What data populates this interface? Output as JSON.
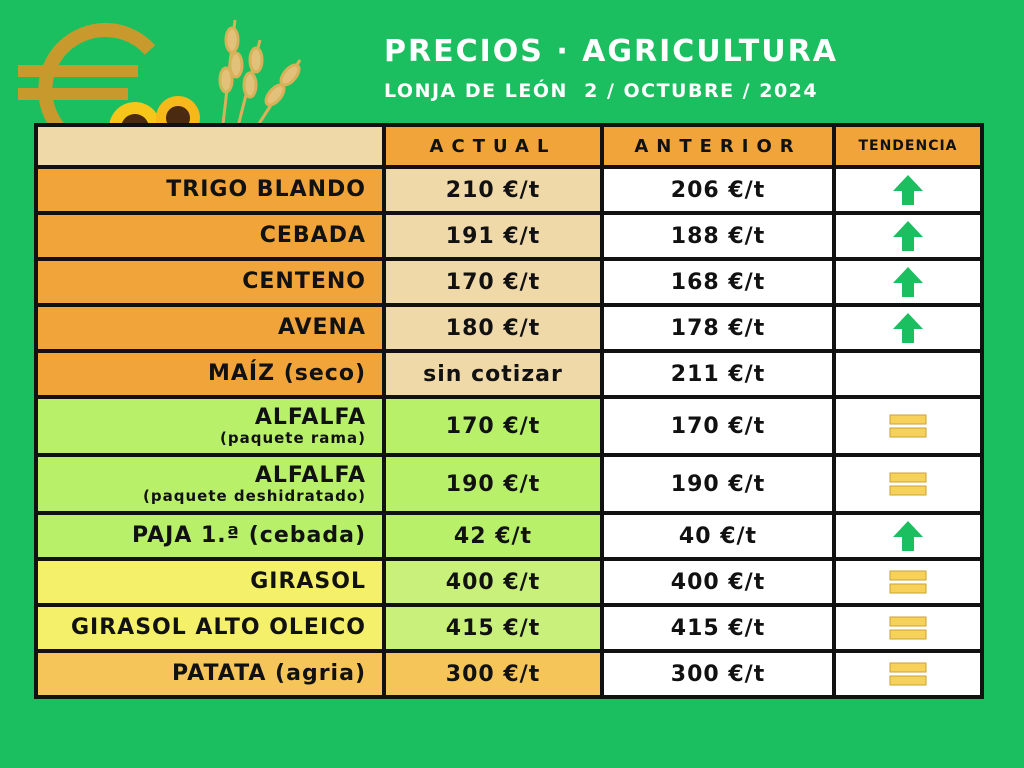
{
  "header": {
    "title": "PRECIOS · AGRICULTURA",
    "subtitle": "LONJA DE LEÓN  2 / OCTUBRE / 2024"
  },
  "columns": {
    "actual": "ACTUAL",
    "anterior": "ANTERIOR",
    "tendencia": "TENDENCIA"
  },
  "rows": [
    {
      "name": "TRIGO BLANDO",
      "sub": "",
      "actual": "210 €/t",
      "anterior": "206 €/t",
      "trend": "up-arrow-icon"
    },
    {
      "name": "CEBADA",
      "sub": "",
      "actual": "191 €/t",
      "anterior": "188 €/t",
      "trend": "up-arrow-icon"
    },
    {
      "name": "CENTENO",
      "sub": "",
      "actual": "170 €/t",
      "anterior": "168 €/t",
      "trend": "up-arrow-icon"
    },
    {
      "name": "AVENA",
      "sub": "",
      "actual": "180 €/t",
      "anterior": "178 €/t",
      "trend": "up-arrow-icon"
    },
    {
      "name": "MAÍZ (seco)",
      "sub": "",
      "actual": "sin cotizar",
      "anterior": "211 €/t",
      "trend": ""
    },
    {
      "name": "ALFALFA",
      "sub": "(paquete rama)",
      "actual": "170 €/t",
      "anterior": "170 €/t",
      "trend": "equal-icon"
    },
    {
      "name": "ALFALFA",
      "sub": "(paquete deshidratado)",
      "actual": "190 €/t",
      "anterior": "190 €/t",
      "trend": "equal-icon"
    },
    {
      "name": "PAJA 1.ª (cebada)",
      "sub": "",
      "actual": "42 €/t",
      "anterior": "40 €/t",
      "trend": "up-arrow-icon"
    },
    {
      "name": "GIRASOL",
      "sub": "",
      "actual": "400 €/t",
      "anterior": "400 €/t",
      "trend": "equal-icon"
    },
    {
      "name": "GIRASOL ALTO OLEICO",
      "sub": "",
      "actual": "415 €/t",
      "anterior": "415 €/t",
      "trend": "equal-icon"
    },
    {
      "name": "PATATA (agria)",
      "sub": "",
      "actual": "300 €/t",
      "anterior": "300 €/t",
      "trend": "equal-icon"
    }
  ],
  "colors": {
    "background": "#1cbf5f",
    "arrow": "#1cbf5f",
    "equal": "#f6d25a"
  }
}
